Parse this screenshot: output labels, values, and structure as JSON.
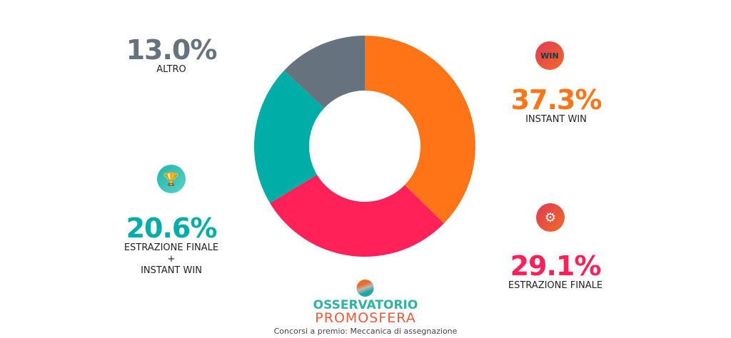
{
  "chart_data": {
    "type": "pie",
    "variant": "donut",
    "start": "top",
    "direction": "clockwise",
    "slices": [
      {
        "label": "INSTANT WIN",
        "value": 37.3,
        "display": "37.3%",
        "color": "#FF7417",
        "icon": "win-banner-icon"
      },
      {
        "label": "ESTRAZIONE FINALE",
        "value": 29.1,
        "display": "29.1%",
        "color": "#FF2158",
        "icon": "lottery-wheel-icon"
      },
      {
        "label_line1": "ESTRAZIONE FINALE",
        "label_line2": "+",
        "label_line3": "INSTANT WIN",
        "value": 20.6,
        "display": "20.6%",
        "color": "#00ADA7",
        "icon": "hand-prizes-icon"
      },
      {
        "label": "ALTRO",
        "value": 13.0,
        "display": "13.0%",
        "color": "#66727D"
      }
    ]
  },
  "logo": {
    "line1": "OSSERVATORIO",
    "line2": "PROMOSFERA"
  },
  "caption": "Concorsi a premio: Meccanica di assegnazione",
  "icons": {
    "win_text": "WIN"
  }
}
